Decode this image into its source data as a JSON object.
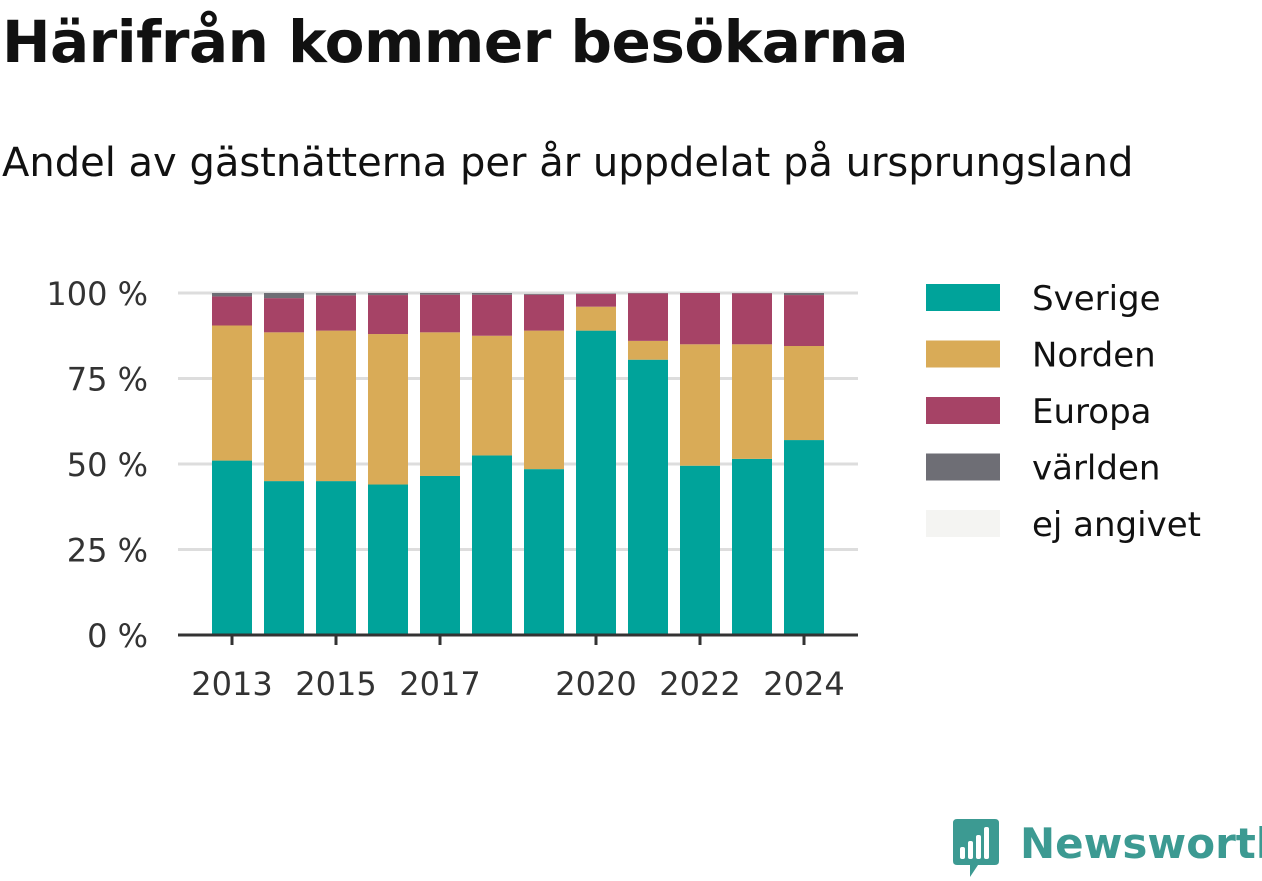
{
  "title": "Härifrån kommer besökarna",
  "subtitle": "Andel av gästnätterna per år uppdelat på ursprungsland",
  "brand": {
    "name": "Newsworthy",
    "logo_icon": "newsworthy-bar-chart-icon"
  },
  "colors": {
    "Sverige": "#00a39a",
    "Norden": "#d9ab57",
    "Europa": "#a64366",
    "världen": "#6e6e75",
    "ej angivet": "#f4f4f2",
    "gridline": "#dddddd",
    "axis": "#333333",
    "brand": "#3c9a92"
  },
  "chart_data": {
    "type": "bar",
    "stacked": true,
    "title": "Härifrån kommer besökarna",
    "subtitle": "Andel av gästnätterna per år uppdelat på ursprungsland",
    "x": [
      2013,
      2014,
      2015,
      2016,
      2017,
      2018,
      2019,
      2020,
      2021,
      2022,
      2023,
      2024
    ],
    "x_tick_labels": [
      "2013",
      "2015",
      "2017",
      "2020",
      "2022",
      "2024"
    ],
    "y_tick_labels": [
      "0 %",
      "25 %",
      "50 %",
      "75 %",
      "100 %"
    ],
    "ylim": [
      0,
      100
    ],
    "unit": "%",
    "grid": true,
    "legend_position": "right",
    "series": [
      {
        "name": "Sverige",
        "values": [
          51,
          45,
          45,
          44,
          46.5,
          52.5,
          48.5,
          89,
          80.5,
          49.5,
          51.5,
          57
        ]
      },
      {
        "name": "Norden",
        "values": [
          39.5,
          43.5,
          44,
          44,
          42,
          35,
          40.5,
          7,
          5.5,
          35.5,
          33.5,
          27.5
        ]
      },
      {
        "name": "Europa",
        "values": [
          8.5,
          10,
          10.3,
          11.4,
          11,
          12,
          10.5,
          3.7,
          13.9,
          15,
          14.9,
          14.9
        ]
      },
      {
        "name": "världen",
        "values": [
          1,
          1.5,
          0.7,
          0.6,
          0.5,
          0.5,
          0.3,
          0.2,
          0.1,
          0,
          0.1,
          0.6
        ]
      },
      {
        "name": "ej angivet",
        "values": [
          0,
          0,
          0,
          0,
          0,
          0,
          0.2,
          0.1,
          0,
          0,
          0,
          0
        ]
      }
    ]
  }
}
